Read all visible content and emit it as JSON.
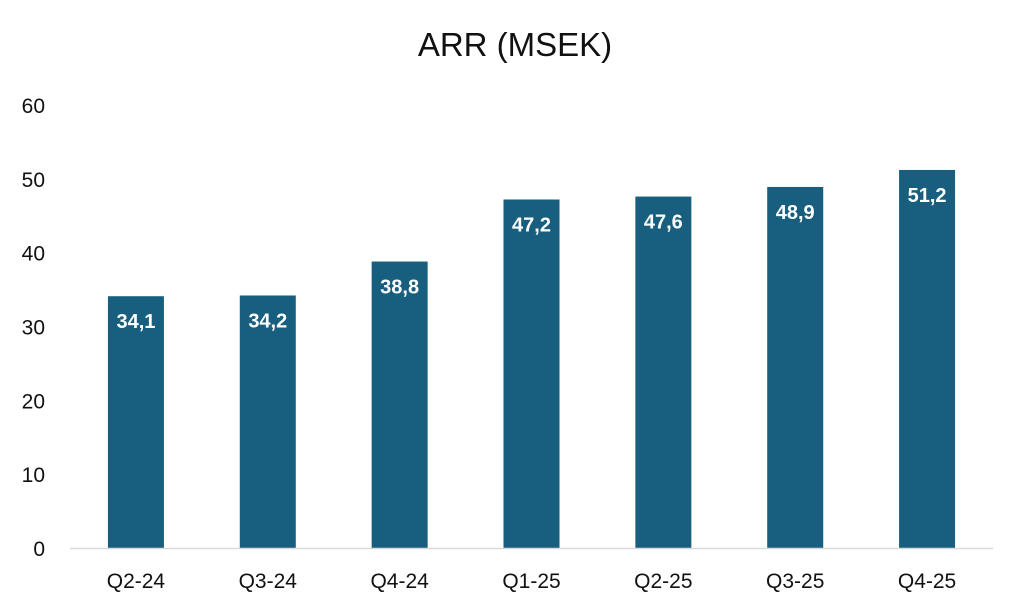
{
  "chart_data": {
    "type": "bar",
    "title": "ARR (MSEK)",
    "categories": [
      "Q2-24",
      "Q3-24",
      "Q4-24",
      "Q1-25",
      "Q2-25",
      "Q3-25",
      "Q4-25"
    ],
    "values": [
      34.1,
      34.2,
      38.8,
      47.2,
      47.6,
      48.9,
      51.2
    ],
    "value_labels": [
      "34,1",
      "34,2",
      "38,8",
      "47,2",
      "47,6",
      "48,9",
      "51,2"
    ],
    "y_ticks": [
      0,
      10,
      20,
      30,
      40,
      50,
      60
    ],
    "ylim": [
      0,
      60
    ],
    "xlabel": "",
    "ylabel": "",
    "grid": false,
    "legend": "none",
    "bar_color": "#175E7F",
    "label_color": "#ffffff",
    "axis_color": "#d9d9d9"
  }
}
